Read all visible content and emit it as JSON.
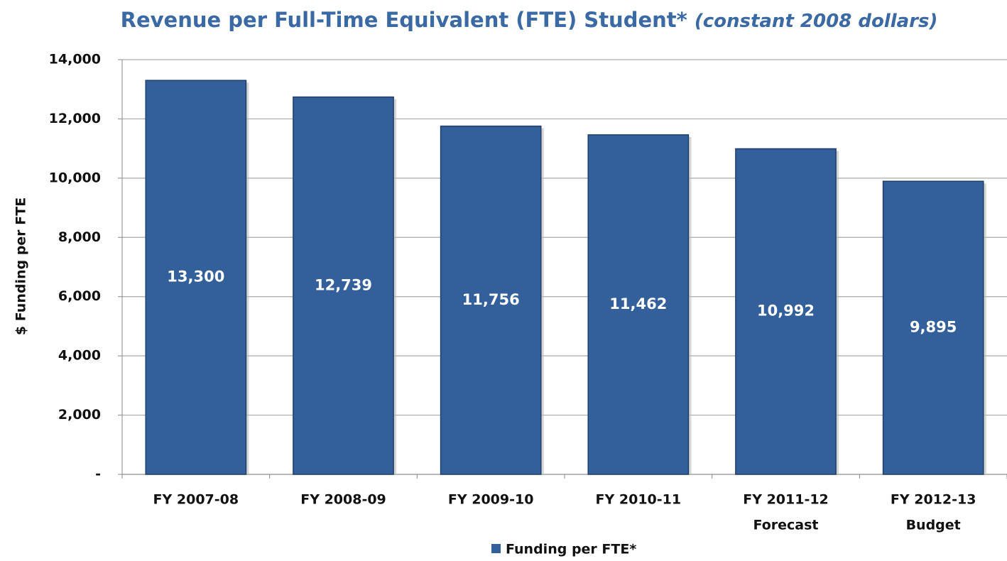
{
  "chart_data": {
    "type": "bar",
    "title": "Revenue per Full-Time Equivalent (FTE) Student*",
    "subtitle": "(constant 2008 dollars)",
    "y_label": "$ Funding per FTE",
    "categories": [
      [
        "FY 2007-08"
      ],
      [
        "FY 2008-09"
      ],
      [
        "FY 2009-10"
      ],
      [
        "FY 2010-11"
      ],
      [
        "FY 2011-12",
        "Forecast"
      ],
      [
        "FY 2012-13",
        "Budget"
      ]
    ],
    "series": [
      {
        "name": "Funding per FTE*",
        "color": "#33609a",
        "values": [
          13300,
          12739,
          11756,
          11462,
          10992,
          9895
        ],
        "value_labels": [
          "13,300",
          "12,739",
          "11,756",
          "11,462",
          "10,992",
          "9,895"
        ]
      }
    ],
    "ylim": [
      0,
      14000
    ],
    "yticks": [
      {
        "value": 0,
        "label": "-"
      },
      {
        "value": 2000,
        "label": "2,000"
      },
      {
        "value": 4000,
        "label": "4,000"
      },
      {
        "value": 6000,
        "label": "6,000"
      },
      {
        "value": 8000,
        "label": "8,000"
      },
      {
        "value": 10000,
        "label": "10,000"
      },
      {
        "value": 12000,
        "label": "12,000"
      },
      {
        "value": 14000,
        "label": "14,000"
      }
    ],
    "grid": true,
    "legend": "bottom"
  }
}
